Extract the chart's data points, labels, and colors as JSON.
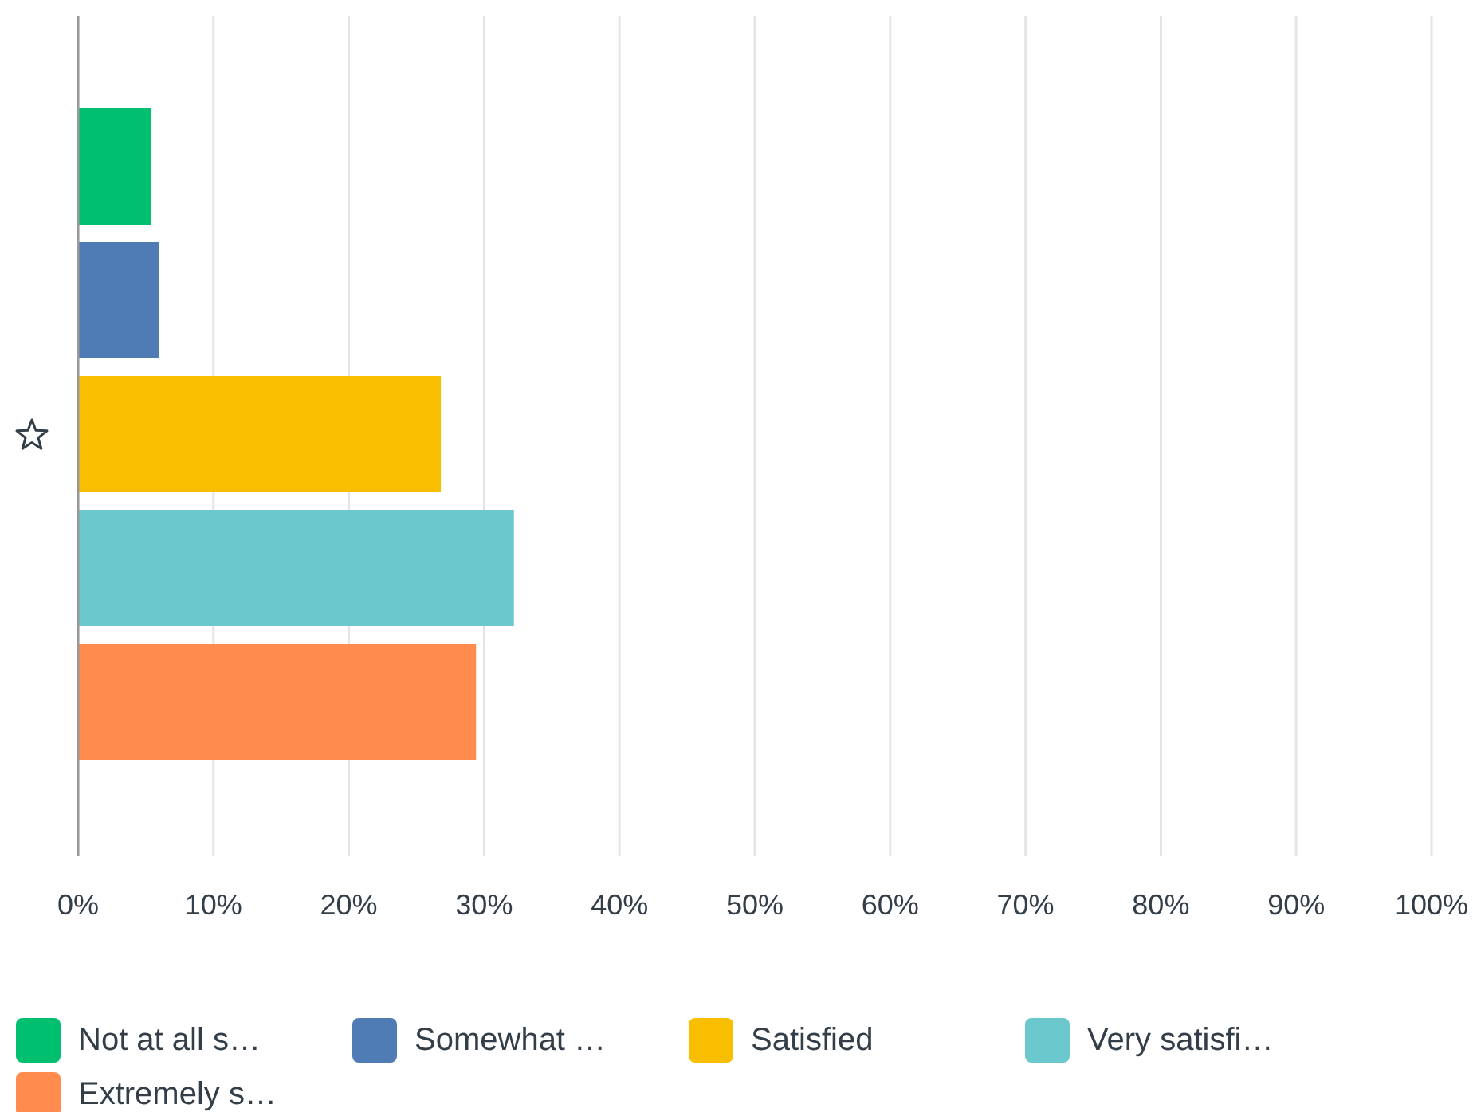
{
  "chart_data": {
    "type": "bar",
    "orientation": "horizontal",
    "categories": [
      null
    ],
    "series": [
      {
        "name": "Not at all s…",
        "color": "#00bf6f",
        "values": [
          5.4
        ]
      },
      {
        "name": "Somewhat …",
        "color": "#507cb6",
        "values": [
          6.0
        ]
      },
      {
        "name": "Satisfied",
        "color": "#f9be00",
        "values": [
          26.8
        ]
      },
      {
        "name": "Very satisfi…",
        "color": "#6bc8cd",
        "values": [
          32.2
        ]
      },
      {
        "name": "Extremely s…",
        "color": "#ff8b4f",
        "values": [
          29.4
        ]
      }
    ],
    "xlim": [
      0,
      100
    ],
    "xticks": [
      {
        "value": 0,
        "label": "0%"
      },
      {
        "value": 10,
        "label": "10%"
      },
      {
        "value": 20,
        "label": "20%"
      },
      {
        "value": 30,
        "label": "30%"
      },
      {
        "value": 40,
        "label": "40%"
      },
      {
        "value": 50,
        "label": "50%"
      },
      {
        "value": 60,
        "label": "60%"
      },
      {
        "value": 70,
        "label": "70%"
      },
      {
        "value": 80,
        "label": "80%"
      },
      {
        "value": 90,
        "label": "90%"
      },
      {
        "value": 100,
        "label": "100%"
      }
    ],
    "grid": "x",
    "legend": "bottom"
  }
}
